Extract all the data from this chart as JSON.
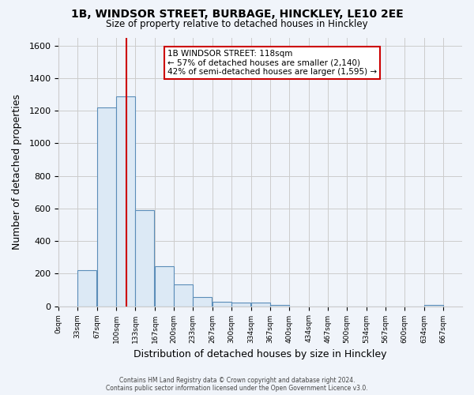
{
  "title": "1B, WINDSOR STREET, BURBAGE, HINCKLEY, LE10 2EE",
  "subtitle": "Size of property relative to detached houses in Hinckley",
  "xlabel": "Distribution of detached houses by size in Hinckley",
  "ylabel": "Number of detached properties",
  "bin_edges": [
    0,
    33,
    67,
    100,
    133,
    167,
    200,
    233,
    267,
    300,
    334,
    367,
    400,
    434,
    467,
    500,
    534,
    567,
    600,
    634,
    667
  ],
  "bin_counts": [
    0,
    220,
    1220,
    1290,
    590,
    245,
    135,
    55,
    25,
    22,
    22,
    8,
    0,
    0,
    0,
    0,
    0,
    0,
    0,
    8
  ],
  "bar_face_color": "#dce9f5",
  "bar_edge_color": "#5b8db8",
  "vline_x": 118,
  "vline_color": "#cc0000",
  "annotation_text_line1": "1B WINDSOR STREET: 118sqm",
  "annotation_text_line2": "← 57% of detached houses are smaller (2,140)",
  "annotation_text_line3": "42% of semi-detached houses are larger (1,595) →",
  "annotation_box_color": "#ffffff",
  "annotation_box_edge_color": "#cc0000",
  "ylim": [
    0,
    1650
  ],
  "yticks": [
    0,
    200,
    400,
    600,
    800,
    1000,
    1200,
    1400,
    1600
  ],
  "tick_labels": [
    "0sqm",
    "33sqm",
    "67sqm",
    "100sqm",
    "133sqm",
    "167sqm",
    "200sqm",
    "233sqm",
    "267sqm",
    "300sqm",
    "334sqm",
    "367sqm",
    "400sqm",
    "434sqm",
    "467sqm",
    "500sqm",
    "534sqm",
    "567sqm",
    "600sqm",
    "634sqm",
    "667sqm"
  ],
  "footer_line1": "Contains HM Land Registry data © Crown copyright and database right 2024.",
  "footer_line2": "Contains public sector information licensed under the Open Government Licence v3.0.",
  "grid_color": "#cccccc",
  "background_color": "#f0f4fa"
}
